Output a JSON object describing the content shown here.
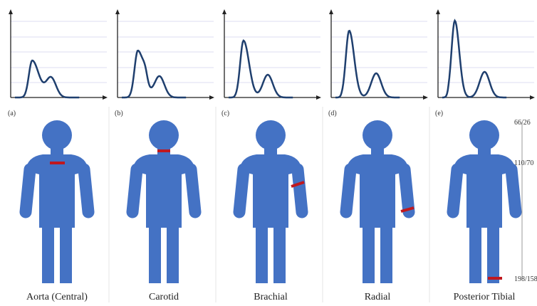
{
  "panels": [
    {
      "letter": "(a)",
      "label": "Aorta (Central)"
    },
    {
      "letter": "(b)",
      "label": "Carotid"
    },
    {
      "letter": "(c)",
      "label": "Brachial"
    },
    {
      "letter": "(d)",
      "label": "Radial"
    },
    {
      "letter": "(e)",
      "label": "Posterior Tibial"
    }
  ],
  "pressure_annotations": [
    "66/26",
    "110/70",
    "198/158"
  ]
}
